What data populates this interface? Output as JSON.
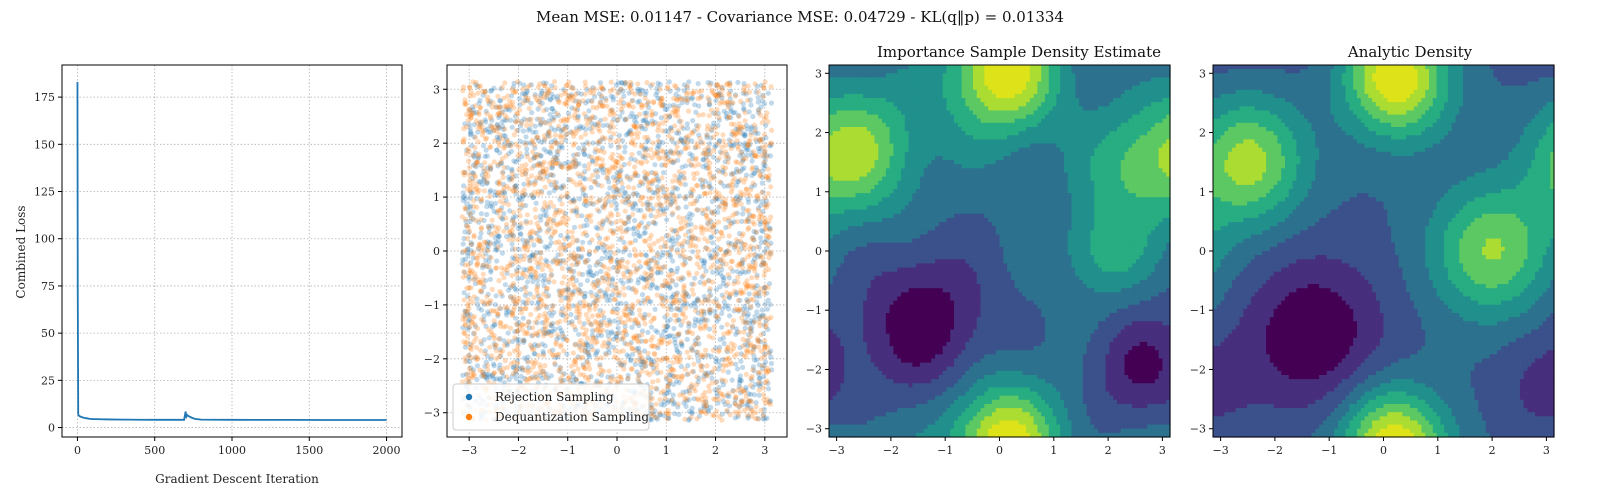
{
  "suptitle": "Mean MSE: 0.01147 - Covariance MSE: 0.04729 - KL(q‖p) = 0.01334",
  "colors": {
    "series_blue": "#1f77b4",
    "series_orange": "#ff7f0e",
    "grid": "#b0b0b0",
    "viridis": [
      "#440154",
      "#472f7d",
      "#3b518b",
      "#2c718e",
      "#21908d",
      "#27ad81",
      "#5cc863",
      "#aadc32",
      "#dde318"
    ]
  },
  "chart_data": [
    {
      "type": "line",
      "title": "",
      "xlabel": "Gradient Descent Iteration",
      "ylabel": "Combined Loss",
      "xlim": [
        -100,
        2100
      ],
      "ylim": [
        -5,
        192
      ],
      "xticks": [
        0,
        500,
        1000,
        1500,
        2000
      ],
      "yticks": [
        0,
        25,
        50,
        75,
        100,
        125,
        150,
        175
      ],
      "grid": true,
      "series": [
        {
          "x": [
            0,
            2,
            5,
            10,
            20,
            40,
            60,
            80,
            100,
            150,
            200,
            300,
            400,
            500,
            600,
            690,
            700,
            705,
            710,
            720,
            740,
            760,
            780,
            800,
            900,
            1000,
            1200,
            1400,
            1600,
            1800,
            2000
          ],
          "values": [
            183,
            70,
            7,
            6.2,
            5.8,
            5.2,
            4.9,
            4.6,
            4.5,
            4.4,
            4.3,
            4.2,
            4.15,
            4.1,
            4.1,
            4.1,
            8.5,
            5.8,
            6.6,
            6.0,
            5.2,
            4.6,
            4.4,
            4.2,
            4.15,
            4.1,
            4.05,
            4.05,
            4.0,
            4.0,
            4.0
          ]
        }
      ]
    },
    {
      "type": "scatter",
      "title": "",
      "xlim": [
        -3.45,
        3.45
      ],
      "ylim": [
        -3.45,
        3.45
      ],
      "xticks": [
        -3,
        -2,
        -1,
        0,
        1,
        2,
        3
      ],
      "yticks": [
        -3,
        -2,
        -1,
        0,
        1,
        2,
        3
      ],
      "grid": true,
      "legend": "lower-left",
      "series": [
        {
          "name": "Rejection Sampling",
          "description": "uniform square [-3.14, 3.14]"
        },
        {
          "name": "Dequantization Sampling",
          "description": "uniform square [-3.14, 3.14]"
        }
      ]
    },
    {
      "type": "heatmap",
      "title": "Importance Sample Density Estimate",
      "xlim": [
        -3.14,
        3.14
      ],
      "ylim": [
        -3.14,
        3.14
      ],
      "xticks": [
        -3,
        -2,
        -1,
        0,
        1,
        2,
        3
      ],
      "yticks": [
        -3,
        -2,
        -1,
        0,
        1,
        2,
        3
      ],
      "colormap": "viridis",
      "levels": 9
    },
    {
      "type": "heatmap",
      "title": "Analytic Density",
      "xlim": [
        -3.14,
        3.14
      ],
      "ylim": [
        -3.14,
        3.14
      ],
      "xticks": [
        -3,
        -2,
        -1,
        0,
        1,
        2,
        3
      ],
      "yticks": [
        -3,
        -2,
        -1,
        0,
        1,
        2,
        3
      ],
      "colormap": "viridis",
      "levels": 9
    }
  ]
}
